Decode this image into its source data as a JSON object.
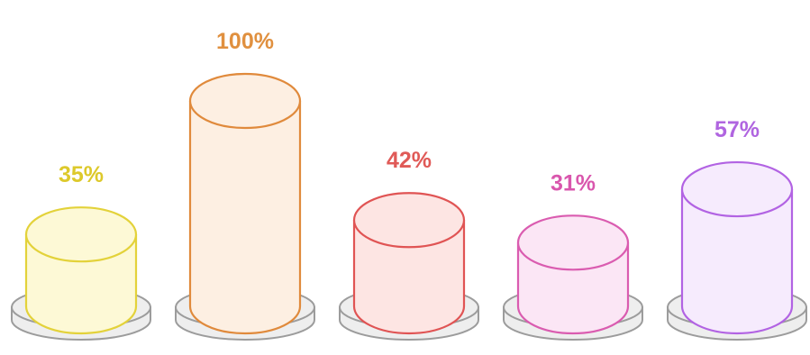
{
  "chart_data": {
    "type": "bar",
    "style": "3d-cylinder",
    "title": "",
    "xlabel": "",
    "ylabel": "",
    "ylim": [
      0,
      100
    ],
    "grid": false,
    "legend": "none",
    "values": [
      35,
      100,
      42,
      31,
      57
    ],
    "labels": [
      "35%",
      "100%",
      "42%",
      "31%",
      "57%"
    ],
    "colors": [
      {
        "stroke": "#e3d23a",
        "fill": "#fdf9d6",
        "label": "#ddc92b"
      },
      {
        "stroke": "#e08a3c",
        "fill": "#fdefe2",
        "label": "#e0903f"
      },
      {
        "stroke": "#e05454",
        "fill": "#fde5e3",
        "label": "#e05a57"
      },
      {
        "stroke": "#da5cb0",
        "fill": "#fbe6f5",
        "label": "#d956ad"
      },
      {
        "stroke": "#b263e3",
        "fill": "#f6ebfd",
        "label": "#b065e0"
      }
    ],
    "base_color": {
      "stroke": "#9c9c9c",
      "fill": "#eeeeee"
    }
  }
}
